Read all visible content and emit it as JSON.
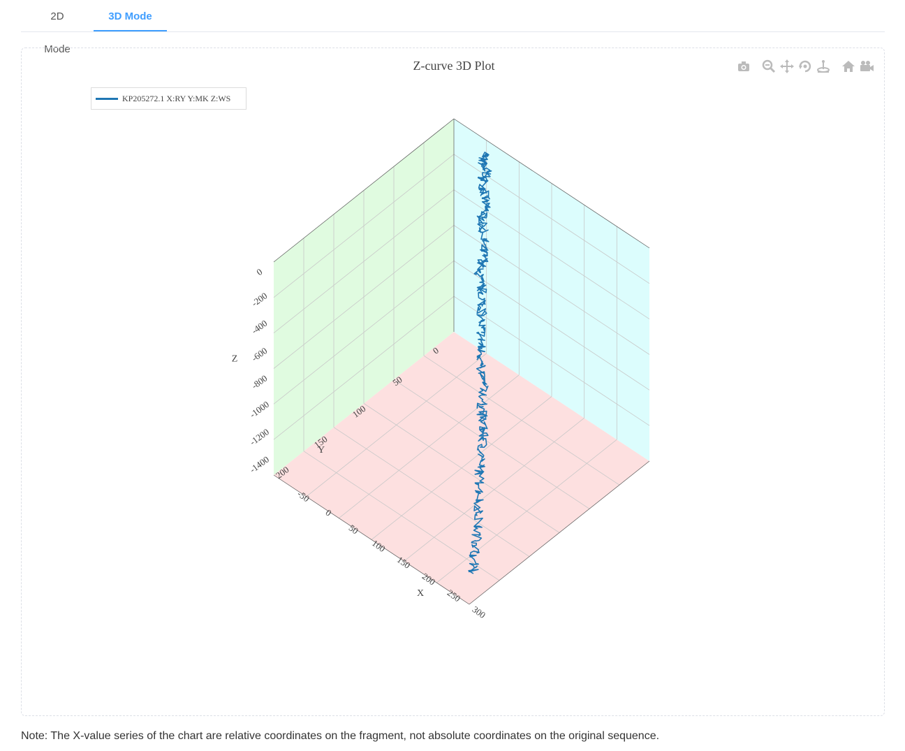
{
  "tabs": [
    {
      "label": "2D Mode",
      "active": false
    },
    {
      "label": "3D Mode",
      "active": true
    }
  ],
  "modebar": [
    "camera-icon",
    "zoom-icon",
    "pan-icon",
    "orbit-rotation-icon",
    "turntable-rotation-icon",
    "reset-camera-icon",
    "last-save-camera-icon"
  ],
  "note": "Note: The X-value series of the chart are relative coordinates on the fragment, not absolute coordinates on the original sequence.",
  "colors": {
    "accent": "#409eff",
    "line": "#1f77b4",
    "plane_xz": "#e0fbe0",
    "plane_yz": "#dcfdfd",
    "plane_xy": "#fde0e0"
  },
  "chart_data": {
    "type": "line3d",
    "title": "Z-curve 3D Plot",
    "legend_position": "top-left",
    "grid": true,
    "series": [
      {
        "name": "KP205272.1 X:RY Y:MK Z:WS",
        "x": [
          0,
          -5,
          3,
          10,
          8,
          15,
          22,
          30,
          28,
          35,
          45,
          52,
          60,
          58,
          70,
          82,
          90,
          98,
          110,
          118,
          125,
          135,
          150,
          160,
          168,
          180,
          190,
          200,
          210,
          222,
          235,
          245,
          258,
          268,
          276,
          285
        ],
        "y": [
          0,
          4,
          8,
          6,
          12,
          14,
          18,
          22,
          26,
          30,
          34,
          40,
          44,
          50,
          56,
          60,
          66,
          72,
          80,
          86,
          90,
          98,
          104,
          110,
          118,
          124,
          130,
          138,
          146,
          156,
          164,
          172,
          182,
          190,
          198,
          205
        ],
        "z": [
          0,
          -30,
          -60,
          -90,
          -120,
          -160,
          -200,
          -240,
          -280,
          -320,
          -360,
          -400,
          -440,
          -480,
          -520,
          -560,
          -600,
          -640,
          -680,
          -720,
          -760,
          -800,
          -840,
          -880,
          -920,
          -960,
          -1000,
          -1040,
          -1080,
          -1120,
          -1180,
          -1240,
          -1300,
          -1360,
          -1410,
          -1460
        ]
      }
    ],
    "axes": {
      "x": {
        "title": "X",
        "range": [
          -75,
          315
        ],
        "ticks": [
          "-50",
          "0",
          "50",
          "100",
          "150",
          "200",
          "250",
          "300"
        ]
      },
      "y": {
        "title": "Y",
        "range": [
          -5,
          230
        ],
        "ticks": [
          "0",
          "50",
          "100",
          "150",
          "200"
        ]
      },
      "z": {
        "title": "Z",
        "range": [
          -1500,
          50
        ],
        "ticks": [
          "0",
          "-200",
          "-400",
          "-600",
          "-800",
          "-1000",
          "-1200",
          "-1400"
        ]
      }
    }
  }
}
